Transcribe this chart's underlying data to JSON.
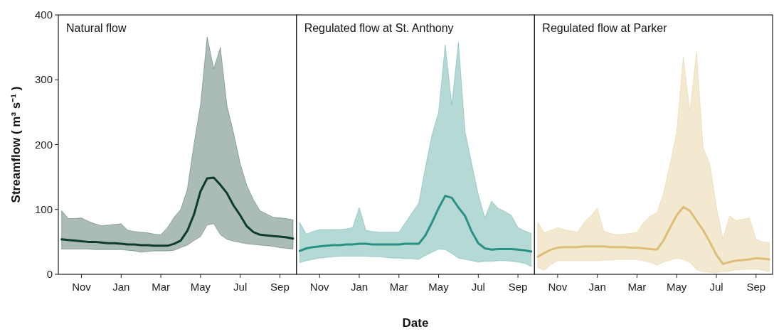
{
  "chart_data": [
    {
      "type": "line",
      "title": "Natural flow",
      "ylabel": "Streamflow ( m³ s⁻¹ )",
      "ylim": [
        0,
        400
      ],
      "yticks": [
        0,
        100,
        200,
        300,
        400
      ],
      "categories": [
        null,
        null,
        null,
        "Nov",
        null,
        null,
        null,
        null,
        null,
        "Jan",
        null,
        null,
        null,
        null,
        null,
        "Mar",
        null,
        null,
        null,
        null,
        null,
        "May",
        null,
        null,
        null,
        null,
        null,
        "Jul",
        null,
        null,
        null,
        null,
        null,
        "Sep",
        null,
        null
      ],
      "series": [
        {
          "color": "#0d3b2e",
          "values": [
            54,
            53,
            52,
            51,
            50,
            50,
            49,
            48,
            48,
            47,
            46,
            46,
            45,
            45,
            44,
            44,
            44,
            47,
            52,
            67,
            92,
            128,
            148,
            149,
            138,
            125,
            106,
            91,
            74,
            65,
            61,
            60,
            59,
            58,
            57,
            55
          ],
          "upper": [
            98,
            86,
            86,
            87,
            82,
            78,
            75,
            76,
            77,
            78,
            68,
            66,
            65,
            64,
            62,
            61,
            72,
            88,
            100,
            131,
            200,
            262,
            366,
            317,
            350,
            260,
            218,
            171,
            137,
            115,
            98,
            93,
            88,
            87,
            86,
            84
          ],
          "lower": [
            39,
            39,
            39,
            39,
            39,
            38,
            38,
            38,
            38,
            38,
            37,
            36,
            34,
            35,
            36,
            36,
            36,
            37,
            41,
            45,
            52,
            58,
            76,
            78,
            61,
            54,
            51,
            49,
            47,
            46,
            45,
            44,
            43,
            41,
            40,
            39
          ]
        }
      ]
    },
    {
      "type": "line",
      "title": "Regulated flow at St. Anthony",
      "xlabel": "Date",
      "tick_labels": "x",
      "ylim": [
        0,
        400
      ],
      "categories": [
        null,
        null,
        null,
        "Nov",
        null,
        null,
        null,
        null,
        null,
        "Jan",
        null,
        null,
        null,
        null,
        null,
        "Mar",
        null,
        null,
        null,
        null,
        null,
        "May",
        null,
        null,
        null,
        null,
        null,
        "Jul",
        null,
        null,
        null,
        null,
        null,
        "Sep",
        null,
        null
      ],
      "series": [
        {
          "color": "#2a9187",
          "values": [
            36,
            40,
            42,
            43,
            44,
            45,
            45,
            46,
            46,
            47,
            47,
            46,
            46,
            46,
            46,
            46,
            47,
            47,
            47,
            60,
            80,
            102,
            121,
            118,
            103,
            90,
            66,
            48,
            40,
            38,
            39,
            39,
            39,
            38,
            37,
            35
          ],
          "upper": [
            80,
            62,
            66,
            69,
            69,
            69,
            69,
            70,
            72,
            103,
            68,
            66,
            65,
            65,
            65,
            65,
            80,
            95,
            110,
            165,
            215,
            250,
            354,
            262,
            358,
            220,
            171,
            123,
            87,
            113,
            102,
            97,
            91,
            72,
            67,
            63
          ],
          "lower": [
            18,
            21,
            23,
            25,
            26,
            27,
            28,
            28,
            28,
            28,
            28,
            27,
            27,
            26,
            25,
            25,
            24,
            24,
            23,
            29,
            34,
            39,
            38,
            32,
            25,
            23,
            21,
            19,
            20,
            20,
            21,
            21,
            20,
            19,
            17,
            12
          ]
        }
      ]
    },
    {
      "type": "line",
      "title": "Regulated flow at Parker",
      "tick_labels": "x",
      "ylim": [
        0,
        400
      ],
      "categories": [
        null,
        null,
        null,
        "Nov",
        null,
        null,
        null,
        null,
        null,
        "Jan",
        null,
        null,
        null,
        null,
        null,
        "Mar",
        null,
        null,
        null,
        null,
        null,
        "May",
        null,
        null,
        null,
        null,
        null,
        "Jul",
        null,
        null,
        null,
        null,
        null,
        "Sep",
        null,
        null
      ],
      "series": [
        {
          "color": "#ddbe78",
          "values": [
            27,
            33,
            38,
            41,
            42,
            42,
            42,
            43,
            43,
            43,
            43,
            42,
            42,
            42,
            41,
            41,
            40,
            39,
            38,
            52,
            72,
            91,
            104,
            98,
            83,
            68,
            50,
            30,
            16,
            19,
            21,
            22,
            23,
            25,
            24,
            23
          ],
          "upper": [
            80,
            64,
            68,
            72,
            69,
            67,
            65,
            80,
            90,
            102,
            66,
            63,
            61,
            62,
            63,
            65,
            80,
            90,
            95,
            125,
            170,
            220,
            335,
            251,
            343,
            195,
            171,
            105,
            54,
            90,
            83,
            85,
            87,
            54,
            50,
            49
          ],
          "lower": [
            10,
            6,
            15,
            21,
            21,
            21,
            21,
            21,
            21,
            21,
            22,
            22,
            23,
            23,
            23,
            23,
            21,
            18,
            14,
            19,
            22,
            25,
            23,
            18,
            7,
            4,
            3,
            3,
            4,
            5,
            7,
            7,
            8,
            8,
            6,
            4
          ]
        }
      ]
    }
  ]
}
